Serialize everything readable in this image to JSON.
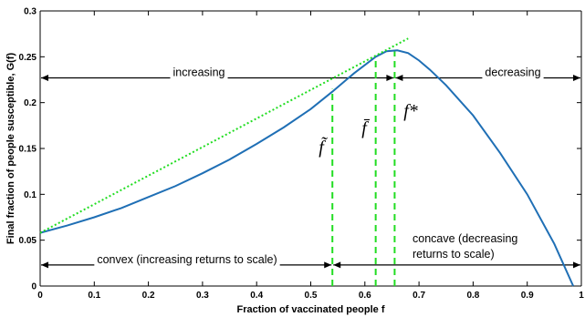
{
  "chart_data": {
    "type": "line",
    "xlabel": "Fraction of vaccinated people f",
    "ylabel": "Final fraction of people susceptible, G(f)",
    "xlim": [
      0,
      1
    ],
    "ylim": [
      0,
      0.3
    ],
    "x_ticks": [
      "0",
      "0.1",
      "0.2",
      "0.3",
      "0.4",
      "0.5",
      "0.6",
      "0.7",
      "0.8",
      "0.9",
      "1"
    ],
    "y_ticks": [
      "0",
      "0.05",
      "0.1",
      "0.15",
      "0.2",
      "0.25",
      "0.3"
    ],
    "grid": false,
    "series": [
      {
        "color": "#1f6fb5",
        "style": "solid",
        "x": [
          0,
          0.05,
          0.1,
          0.15,
          0.2,
          0.25,
          0.3,
          0.35,
          0.4,
          0.45,
          0.5,
          0.54,
          0.58,
          0.62,
          0.64,
          0.66,
          0.68,
          0.7,
          0.72,
          0.75,
          0.8,
          0.85,
          0.9,
          0.95,
          0.985
        ],
        "y": [
          0.058,
          0.066,
          0.075,
          0.085,
          0.097,
          0.109,
          0.123,
          0.138,
          0.155,
          0.173,
          0.193,
          0.212,
          0.232,
          0.25,
          0.256,
          0.257,
          0.254,
          0.246,
          0.236,
          0.219,
          0.186,
          0.145,
          0.1,
          0.046,
          0.0
        ]
      },
      {
        "color": "#22dd22",
        "style": "dotted",
        "x": [
          0,
          0.68
        ],
        "y": [
          0.058,
          0.27
        ]
      }
    ],
    "vertical_lines": [
      {
        "x": 0.54,
        "y0": 0,
        "y1": 0.215,
        "color": "#22dd22",
        "label": "f̃"
      },
      {
        "x": 0.62,
        "y0": 0,
        "y1": 0.25,
        "color": "#22dd22",
        "label": "f̄"
      },
      {
        "x": 0.655,
        "y0": 0,
        "y1": 0.257,
        "color": "#22dd22",
        "label": "f*"
      }
    ],
    "annotations": {
      "increasing": {
        "text": "increasing",
        "x0": 0,
        "x1": 0.655,
        "y": 0.227
      },
      "decreasing": {
        "text": "decreasing",
        "x0": 0.655,
        "x1": 1.0,
        "y": 0.227
      },
      "convex": {
        "text": "convex (increasing returns to scale)",
        "x0": 0,
        "x1": 0.54,
        "y": 0.023
      },
      "concave": {
        "text": [
          "concave (decreasing",
          "returns to scale)"
        ],
        "x0": 0.54,
        "x1": 1.0,
        "y": 0.023
      }
    }
  }
}
